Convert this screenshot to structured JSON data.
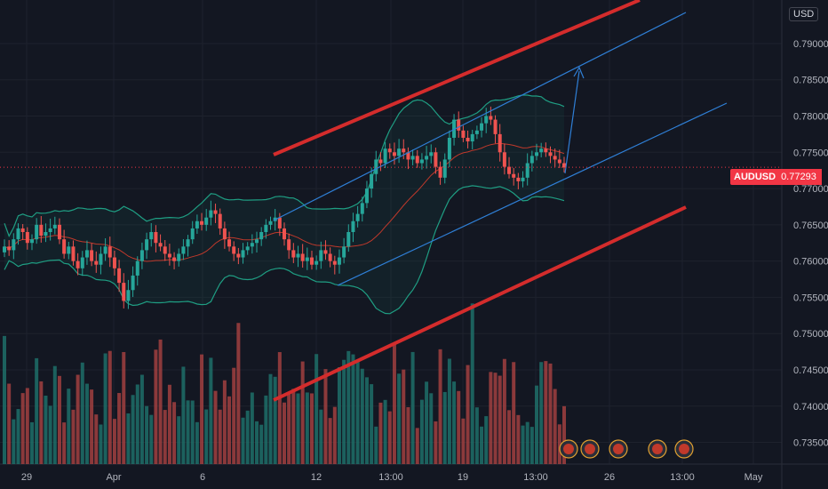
{
  "currency_badge": "USD",
  "symbol_label": {
    "symbol": "AUDUSD",
    "price": "0.77293"
  },
  "colors": {
    "background": "#131722",
    "grid": "#1e222d",
    "up": "#26a69a",
    "down": "#ef5350",
    "volume_up": "#1f6f68",
    "volume_down": "#a13f40",
    "channel": "#d42c2c",
    "trendline": "#2f7fd6",
    "bollinger": "#1f9e83",
    "ma": "#c0392b",
    "axis_text": "#b2b5be"
  },
  "chart_data": {
    "type": "candlestick",
    "symbol": "AUDUSD",
    "last_price": 0.77293,
    "y_ticks": [
      "0.79000",
      "0.78500",
      "0.78000",
      "0.77500",
      "0.77000",
      "0.76500",
      "0.76000",
      "0.75500",
      "0.75000",
      "0.74500",
      "0.74000",
      "0.73500"
    ],
    "x_ticks": [
      "29",
      "Apr",
      "6",
      "12",
      "13:00",
      "19",
      "13:00",
      "26",
      "13:00",
      "May"
    ],
    "ylim": [
      0.732,
      0.796
    ],
    "candles_close": [
      0.762,
      0.7615,
      0.763,
      0.7645,
      0.764,
      0.7625,
      0.763,
      0.765,
      0.7635,
      0.764,
      0.7645,
      0.765,
      0.763,
      0.761,
      0.762,
      0.76,
      0.759,
      0.7605,
      0.7615,
      0.76,
      0.7595,
      0.761,
      0.762,
      0.7605,
      0.759,
      0.757,
      0.7545,
      0.756,
      0.758,
      0.76,
      0.7615,
      0.763,
      0.764,
      0.7625,
      0.762,
      0.761,
      0.7605,
      0.76,
      0.761,
      0.762,
      0.763,
      0.7645,
      0.7655,
      0.765,
      0.766,
      0.767,
      0.7665,
      0.7645,
      0.763,
      0.762,
      0.761,
      0.7605,
      0.7615,
      0.762,
      0.7625,
      0.763,
      0.764,
      0.765,
      0.7655,
      0.766,
      0.7645,
      0.763,
      0.7615,
      0.7605,
      0.761,
      0.76,
      0.7605,
      0.7595,
      0.76,
      0.7615,
      0.761,
      0.76,
      0.7595,
      0.7605,
      0.762,
      0.764,
      0.7655,
      0.7665,
      0.768,
      0.77,
      0.772,
      0.774,
      0.7735,
      0.7755,
      0.775,
      0.7745,
      0.7755,
      0.775,
      0.774,
      0.7745,
      0.7735,
      0.774,
      0.7745,
      0.775,
      0.773,
      0.7715,
      0.774,
      0.777,
      0.7795,
      0.778,
      0.777,
      0.7765,
      0.7775,
      0.778,
      0.779,
      0.78,
      0.7795,
      0.7775,
      0.775,
      0.773,
      0.772,
      0.7715,
      0.771,
      0.7715,
      0.7735,
      0.7745,
      0.775,
      0.7755,
      0.775,
      0.7745,
      0.774,
      0.7735,
      0.7729
    ],
    "upper_channel": {
      "from": [
        0.776,
        11
      ],
      "to": [
        0.796,
        24
      ]
    },
    "lower_channel": {
      "from": [
        0.7405,
        11
      ],
      "to": [
        0.7685,
        24
      ]
    }
  }
}
